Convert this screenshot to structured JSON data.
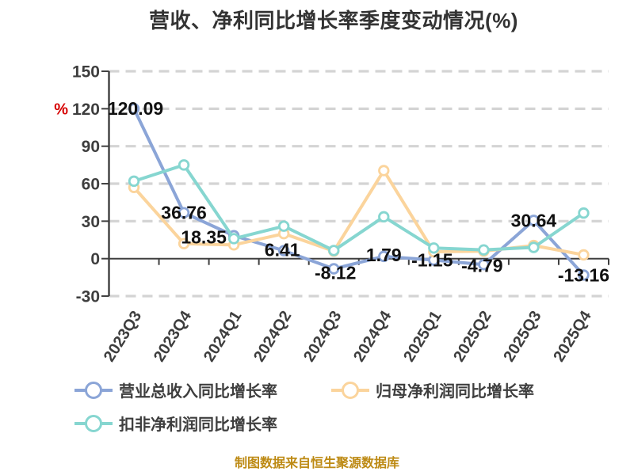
{
  "title": "营收、净利同比增长率季度变动情况(%)",
  "y_unit": "%",
  "footer": "制图数据来自恒生聚源数据库",
  "colors": {
    "background": "#ffffff",
    "grid": "#d4d4d4",
    "axis": "#3f3f3f",
    "tick_label": "#3e3e3e",
    "data_label": "#111111",
    "title": "#333333",
    "footer": "#bd8a14",
    "unit": "#d60000",
    "marker_fill": "#ffffff"
  },
  "chart_data": {
    "type": "line",
    "title": "营收、净利同比增长率季度变动情况(%)",
    "categories": [
      "2023Q3",
      "2023Q4",
      "2024Q1",
      "2024Q2",
      "2024Q3",
      "2024Q4",
      "2025Q1",
      "2025Q2",
      "2025Q3",
      "2025Q4"
    ],
    "series": [
      {
        "name": "营业总收入同比增长率",
        "color": "#8ba5d7",
        "values": [
          120.09,
          36.76,
          18.35,
          6.41,
          -8.12,
          1.79,
          -1.15,
          -4.79,
          30.64,
          -13.16
        ],
        "labels_shown": true
      },
      {
        "name": "归母净利润同比增长率",
        "color": "#fbd49c",
        "values": [
          57,
          12,
          11,
          20,
          6,
          70.5,
          5.5,
          6,
          10.5,
          3
        ],
        "labels_shown": false
      },
      {
        "name": "扣非净利润同比增长率",
        "color": "#86d6d0",
        "values": [
          62,
          75,
          16,
          26,
          6.5,
          33.5,
          8.5,
          7,
          9,
          36.5
        ],
        "labels_shown": false
      }
    ],
    "y_ticks": [
      150,
      120,
      90,
      60,
      30,
      0,
      -30
    ],
    "ylim": [
      -30,
      150
    ],
    "y_unit": "%",
    "grid": true,
    "legend_position": "bottom"
  }
}
